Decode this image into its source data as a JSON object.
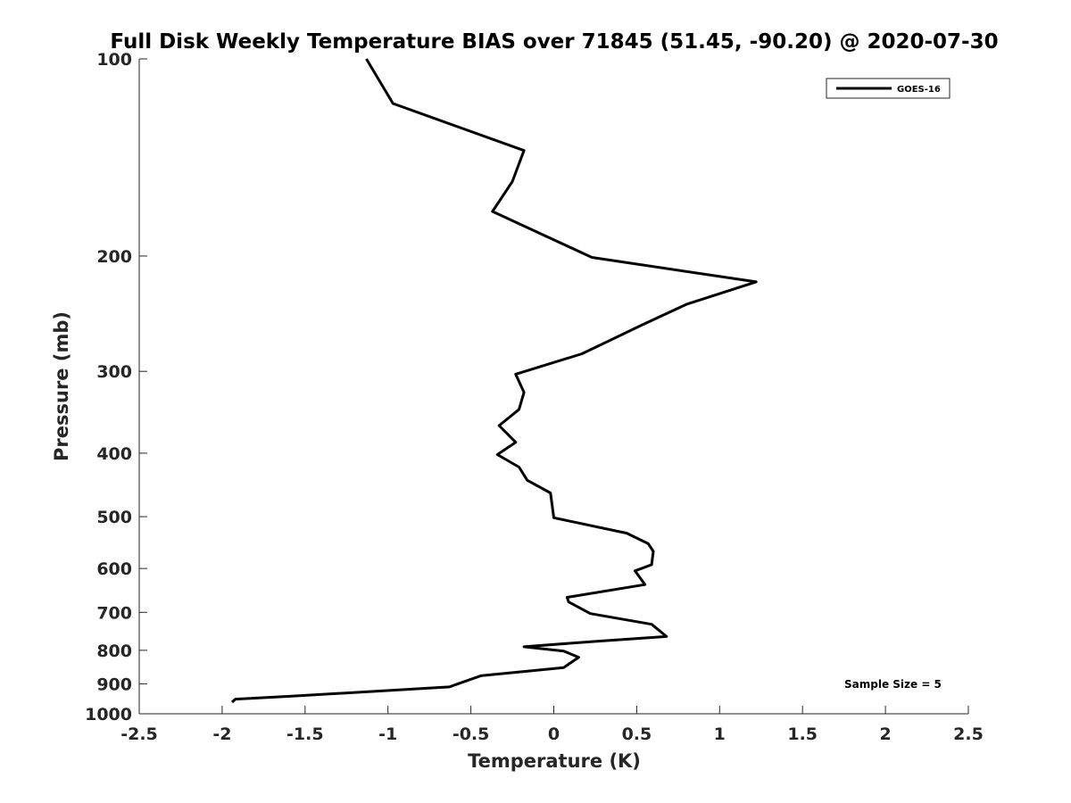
{
  "chart_data": {
    "type": "line",
    "title": "Full Disk Weekly Temperature BIAS over 71845 (51.45, -90.20) @ 2020-07-30",
    "xlabel": "Temperature (K)",
    "ylabel": "Pressure (mb)",
    "xlim": [
      -2.5,
      2.5
    ],
    "ylim": [
      100,
      1000
    ],
    "y_scale": "log",
    "y_reversed": true,
    "grid": false,
    "legend_position": "top-right",
    "x_ticks": [
      -2.5,
      -2,
      -1.5,
      -1,
      -0.5,
      0,
      0.5,
      1,
      1.5,
      2,
      2.5
    ],
    "x_tick_labels": [
      "-2.5",
      "-2",
      "-1.5",
      "-1",
      "-0.5",
      "0",
      "0.5",
      "1",
      "1.5",
      "2",
      "2.5"
    ],
    "y_ticks": [
      100,
      200,
      300,
      400,
      500,
      600,
      700,
      800,
      900,
      1000
    ],
    "y_tick_labels": [
      "100",
      "200",
      "300",
      "400",
      "500",
      "600",
      "700",
      "800",
      "900",
      "1000"
    ],
    "series": [
      {
        "name": "GOES-16",
        "color": "#000000",
        "x": [
          -1.13,
          -0.97,
          -0.18,
          -0.25,
          -0.37,
          0.23,
          1.22,
          0.8,
          0.53,
          0.17,
          -0.23,
          -0.18,
          -0.21,
          -0.33,
          -0.23,
          -0.34,
          -0.21,
          -0.16,
          -0.02,
          0.0,
          0.44,
          0.57,
          0.6,
          0.59,
          0.49,
          0.55,
          0.08,
          0.09,
          0.22,
          0.59,
          0.68,
          0.26,
          -0.18,
          0.06,
          0.15,
          0.06,
          -0.44,
          -0.63,
          -1.58,
          -1.92,
          -1.94
        ],
        "y": [
          100,
          117,
          138,
          154,
          171,
          201,
          219,
          237,
          255,
          282,
          303,
          323,
          343,
          363,
          385,
          402,
          420,
          440,
          460,
          502,
          530,
          550,
          565,
          592,
          605,
          635,
          664,
          675,
          703,
          730,
          762,
          775,
          790,
          802,
          820,
          850,
          875,
          910,
          940,
          950,
          960
        ]
      }
    ],
    "annotations": [
      {
        "text": "Sample Size = 5"
      }
    ]
  }
}
